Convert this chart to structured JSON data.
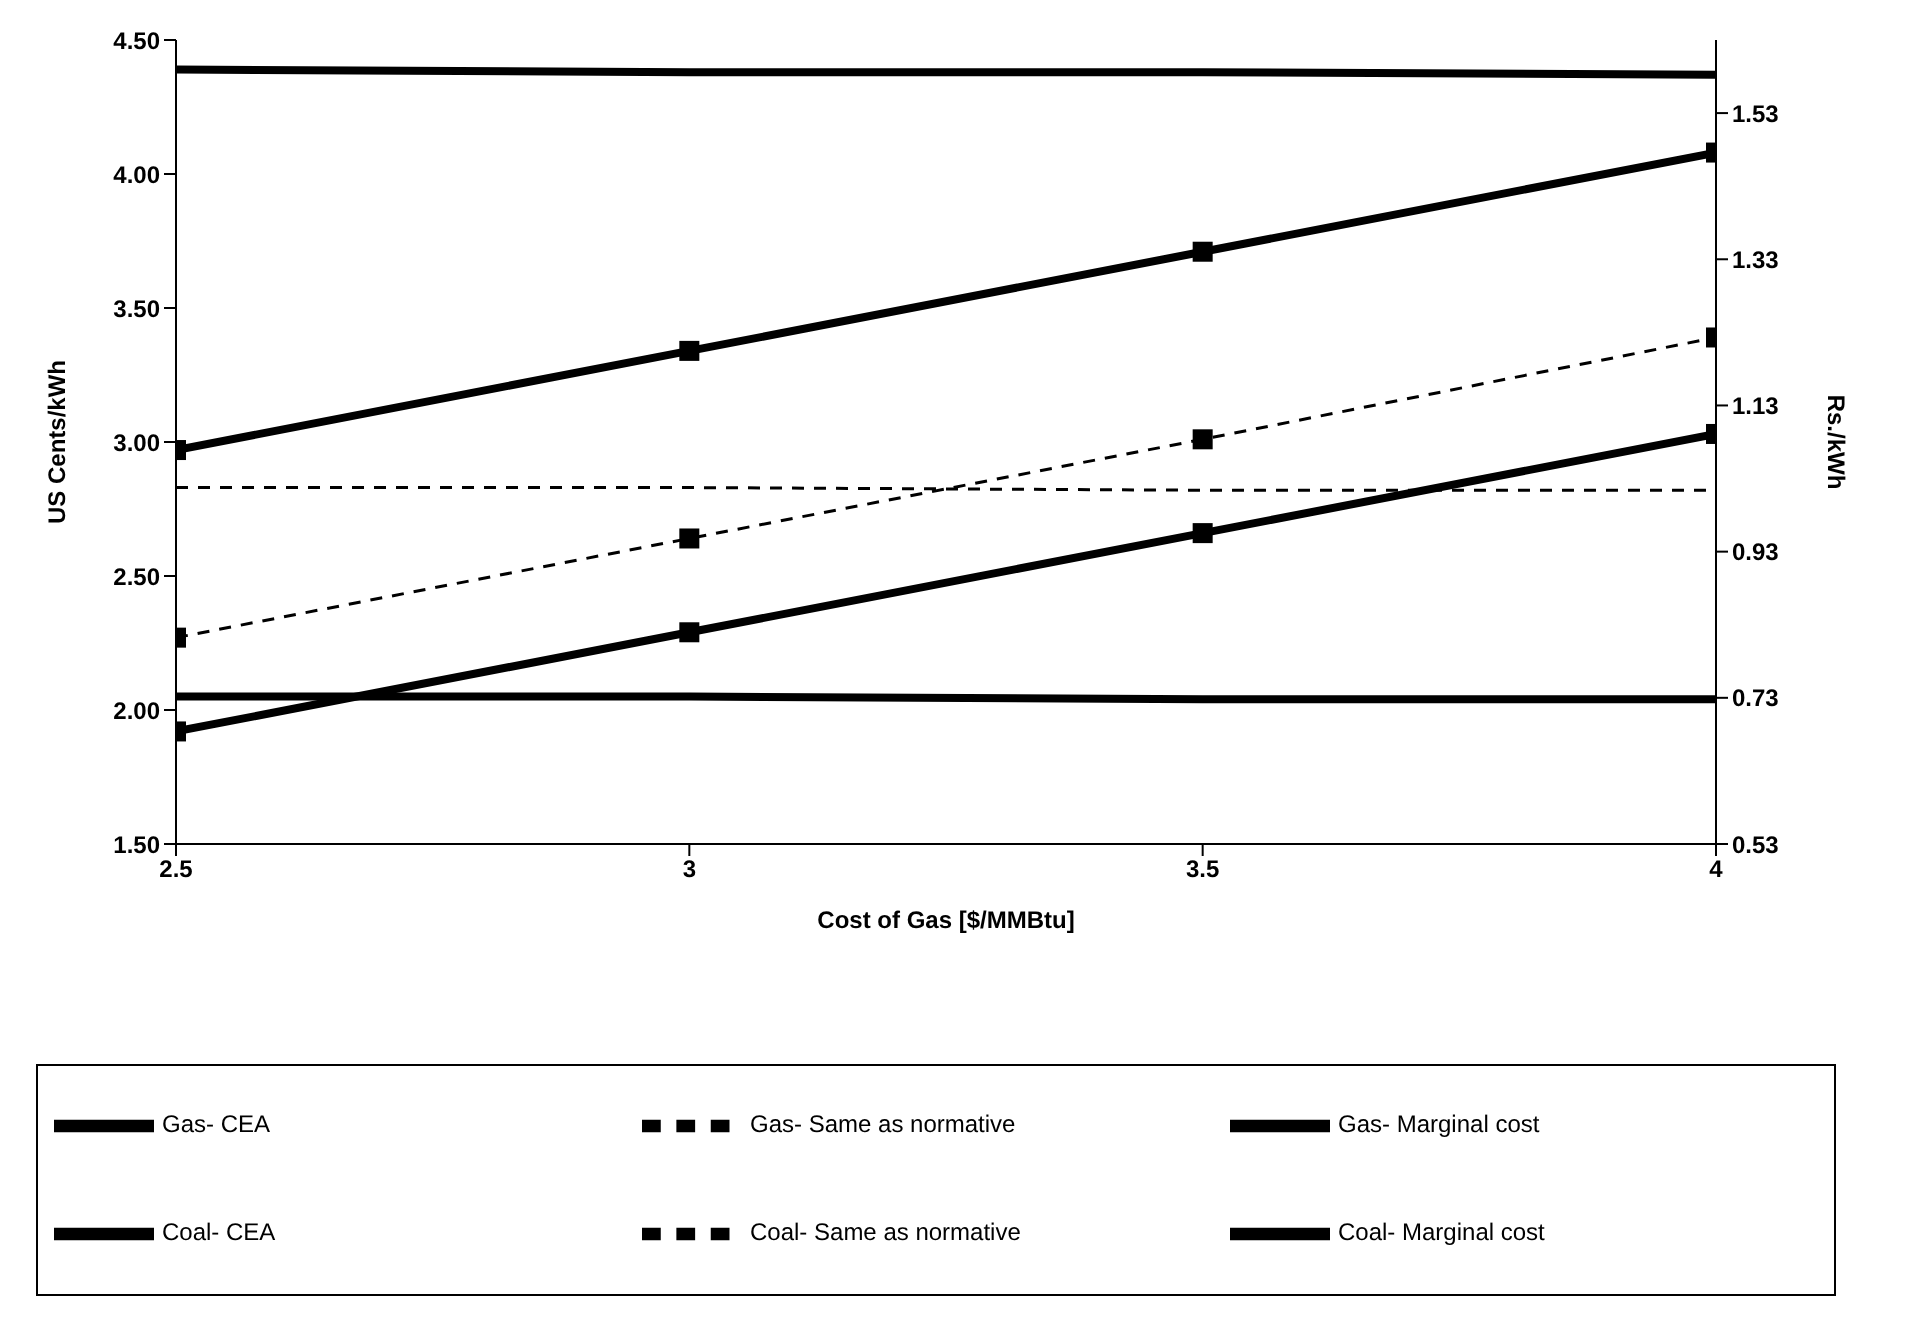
{
  "chart_data": {
    "type": "line",
    "xlabel": "Cost of Gas [$/MMBtu]",
    "ylabel": "US Cents/kWh",
    "y2label": "Rs./kWh",
    "x": [
      2.5,
      3,
      3.5,
      4
    ],
    "xlim": [
      2.5,
      4
    ],
    "xticks": [
      2.5,
      3,
      3.5,
      4
    ],
    "ylim": [
      1.5,
      4.5
    ],
    "yticks": [
      {
        "value": 1.5,
        "label": "1.50"
      },
      {
        "value": 2,
        "label": "2.00"
      },
      {
        "value": 2.5,
        "label": "2.50"
      },
      {
        "value": 3,
        "label": "3.00"
      },
      {
        "value": 3.5,
        "label": "3.50"
      },
      {
        "value": 4,
        "label": "4.00"
      },
      {
        "value": 4.5,
        "label": "4.50"
      }
    ],
    "y2lim": [
      0.53,
      1.63
    ],
    "y2ticks": [
      0.53,
      0.73,
      0.93,
      1.13,
      1.33,
      1.53
    ],
    "grid": false,
    "legend": "bottom",
    "series": [
      {
        "name": "Gas- CEA",
        "color": "#000000",
        "marker": "square",
        "line_style": "solid",
        "values": [
          2.97,
          3.34,
          3.71,
          4.08
        ]
      },
      {
        "name": "Gas- Same as normative",
        "color": "#000000",
        "marker": "square",
        "line_style": "dashed",
        "values": [
          2.27,
          2.64,
          3.01,
          3.39
        ]
      },
      {
        "name": "Gas- Marginal cost",
        "color": "#000000",
        "marker": "square",
        "line_style": "solid",
        "values": [
          1.92,
          2.29,
          2.66,
          3.03
        ]
      },
      {
        "name": "Coal- CEA",
        "color": "#000000",
        "marker": "none",
        "line_style": "solid",
        "values": [
          4.39,
          4.38,
          4.38,
          4.37
        ]
      },
      {
        "name": "Coal- Same as normative",
        "color": "#000000",
        "marker": "none",
        "line_style": "dashed",
        "values": [
          2.83,
          2.83,
          2.82,
          2.82
        ]
      },
      {
        "name": "Coal- Marginal cost",
        "color": "#000000",
        "marker": "none",
        "line_style": "solid",
        "values": [
          2.05,
          2.05,
          2.04,
          2.04
        ]
      }
    ]
  }
}
